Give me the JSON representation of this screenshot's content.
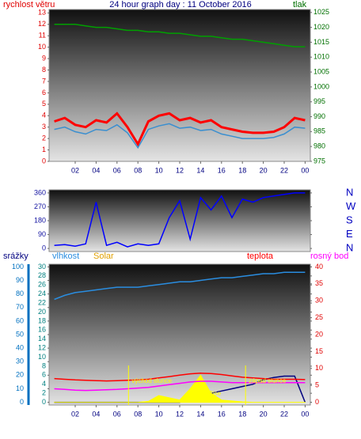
{
  "chart_data": [
    {
      "type": "line",
      "title": "24 hour graph day : 11 October 2016",
      "ylabel": "rychlost větru",
      "y2label": "tlak",
      "ycolor": "#e00000",
      "y2color": "#007000",
      "x": [
        0,
        1,
        2,
        3,
        4,
        5,
        6,
        7,
        8,
        9,
        10,
        11,
        12,
        13,
        14,
        15,
        16,
        17,
        18,
        19,
        20,
        21,
        22,
        23,
        24
      ],
      "xlim": [
        -0.5,
        24.5
      ],
      "xticks": [
        {
          "value": 2,
          "label": "02"
        },
        {
          "value": 4,
          "label": "04"
        },
        {
          "value": 6,
          "label": "06"
        },
        {
          "value": 8,
          "label": "08"
        },
        10,
        12,
        14,
        16,
        18,
        20,
        22,
        {
          "value": 24,
          "label": "00"
        }
      ],
      "ylim": [
        0,
        13.3
      ],
      "yticks": [
        0,
        1,
        2,
        3,
        4,
        5,
        6,
        7,
        8,
        9,
        10,
        11,
        12,
        13
      ],
      "y2lim": [
        975,
        1026
      ],
      "y2ticks": [
        975,
        980,
        985,
        990,
        995,
        1000,
        1005,
        1010,
        1015,
        1020,
        1025
      ],
      "series": [
        {
          "color": "#ff0000",
          "values": [
            3.5,
            3.8,
            3.2,
            3.0,
            3.6,
            3.4,
            4.2,
            3.0,
            1.5,
            3.5,
            4.0,
            4.2,
            3.6,
            3.8,
            3.4,
            3.6,
            3.0,
            2.8,
            2.6,
            2.5,
            2.5,
            2.6,
            3.0,
            3.8,
            3.6
          ]
        },
        {
          "color": "#3a8fd0",
          "values": [
            2.8,
            3.0,
            2.6,
            2.4,
            2.8,
            2.7,
            3.2,
            2.5,
            1.2,
            2.8,
            3.1,
            3.3,
            2.9,
            3.0,
            2.7,
            2.8,
            2.4,
            2.2,
            2.0,
            2.0,
            2.0,
            2.1,
            2.4,
            3.0,
            2.9
          ]
        },
        {
          "color": "#00a000",
          "axis": "y2",
          "values": [
            1021,
            1021,
            1021,
            1020.5,
            1020,
            1020,
            1019.5,
            1019,
            1019,
            1018.5,
            1018.5,
            1018,
            1018,
            1017.5,
            1017,
            1017,
            1016.5,
            1016,
            1016,
            1015.5,
            1015,
            1014.5,
            1014,
            1013.5,
            1013.5
          ]
        }
      ]
    },
    {
      "type": "line",
      "ycolor": "#1010a0",
      "y2color": "#0000c0",
      "x": [
        0,
        1,
        2,
        3,
        4,
        5,
        6,
        7,
        8,
        9,
        10,
        11,
        12,
        13,
        14,
        15,
        16,
        17,
        18,
        19,
        20,
        21,
        22,
        23,
        24
      ],
      "xlim": [
        -0.5,
        24.5
      ],
      "ylim": [
        -20,
        380
      ],
      "yticks": [
        0,
        90,
        180,
        270,
        360
      ],
      "y2lim": [
        -20,
        380
      ],
      "y2ticks": [
        {
          "value": 360,
          "label": "N"
        },
        {
          "value": 270,
          "label": "W"
        },
        {
          "value": 180,
          "label": "S"
        },
        {
          "value": 90,
          "label": "E"
        },
        {
          "value": 0,
          "label": "N"
        }
      ],
      "series": [
        {
          "color": "#0000ff",
          "values": [
            20,
            25,
            15,
            30,
            300,
            20,
            40,
            10,
            30,
            20,
            30,
            200,
            310,
            60,
            330,
            250,
            340,
            200,
            320,
            300,
            330,
            340,
            350,
            360,
            360
          ]
        }
      ]
    },
    {
      "type": "line",
      "ycolor": "#0070c0",
      "y2color": "#008080",
      "y3color": "#e00000",
      "x": [
        0,
        1,
        2,
        3,
        4,
        5,
        6,
        7,
        8,
        9,
        10,
        11,
        12,
        13,
        14,
        15,
        16,
        17,
        18,
        19,
        20,
        21,
        22,
        23,
        24
      ],
      "xlim": [
        -0.5,
        24.5
      ],
      "xticks": [
        {
          "value": 2,
          "label": "02"
        },
        {
          "value": 4,
          "label": "04"
        },
        {
          "value": 6,
          "label": "06"
        },
        {
          "value": 8,
          "label": "08"
        },
        10,
        12,
        14,
        16,
        18,
        20,
        22,
        {
          "value": 24,
          "label": "00"
        }
      ],
      "ylim": [
        -2,
        102
      ],
      "yticks": [
        0,
        10,
        20,
        30,
        40,
        50,
        60,
        70,
        80,
        90,
        100
      ],
      "y2lim": [
        -0.6,
        30.6
      ],
      "y2ticks": [
        0,
        2,
        4,
        6,
        8,
        10,
        12,
        14,
        16,
        18,
        20,
        22,
        24,
        26,
        28,
        30
      ],
      "y3lim": [
        -0.8,
        40.8
      ],
      "y3ticks": [
        0,
        5,
        10,
        15,
        20,
        25,
        30,
        35,
        40
      ],
      "series": [
        {
          "name": "srážky",
          "color": "#000080",
          "axis": "y2",
          "values": [
            0,
            0,
            0,
            0,
            0,
            0,
            0,
            0,
            0,
            0,
            0,
            0,
            0,
            1,
            1.5,
            2,
            2.5,
            3,
            3.5,
            4,
            5,
            5.5,
            5.8,
            5.8,
            0
          ]
        },
        {
          "name": "vlhkost",
          "color": "#2a8de0",
          "values": [
            76,
            79,
            81,
            82,
            83,
            84,
            85,
            85,
            85,
            86,
            87,
            88,
            89,
            89,
            90,
            91,
            92,
            92,
            93,
            94,
            95,
            95,
            96,
            96,
            96
          ]
        },
        {
          "name": "Solar",
          "color": "#ffff00",
          "axis": "y2",
          "area": true,
          "values": [
            0,
            0,
            0,
            0,
            0,
            0,
            0,
            0,
            0,
            0.2,
            1.5,
            1,
            0.5,
            3,
            6,
            2,
            0.5,
            0.3,
            0.1,
            0,
            0,
            0,
            0,
            0,
            0
          ]
        },
        {
          "name": "teplota",
          "color": "#ff0000",
          "axis": "y3",
          "values": [
            7,
            6.8,
            6.6,
            6.5,
            6.4,
            6.3,
            6.4,
            6.5,
            6.6,
            6.8,
            7.2,
            7.6,
            8.0,
            8.4,
            8.6,
            8.5,
            8.2,
            7.8,
            7.4,
            7.2,
            7.0,
            6.8,
            6.8,
            6.8,
            6.7
          ]
        },
        {
          "name": "rosný bod",
          "color": "#ff00ff",
          "axis": "y3",
          "values": [
            4,
            3.8,
            3.6,
            3.5,
            3.6,
            3.7,
            3.8,
            4.0,
            4.2,
            4.4,
            4.8,
            5.2,
            5.6,
            6.0,
            6.2,
            6.2,
            6.0,
            5.8,
            5.8,
            5.8,
            5.8,
            5.8,
            5.8,
            5.8,
            5.8
          ]
        }
      ],
      "annotations": [
        {
          "text": "východ slunce",
          "x": 7.1,
          "line": true
        },
        {
          "text": "západ slunce",
          "x": 18.3,
          "line": true
        },
        {
          "text": "Moon Rise",
          "x": 14.5
        }
      ]
    }
  ]
}
